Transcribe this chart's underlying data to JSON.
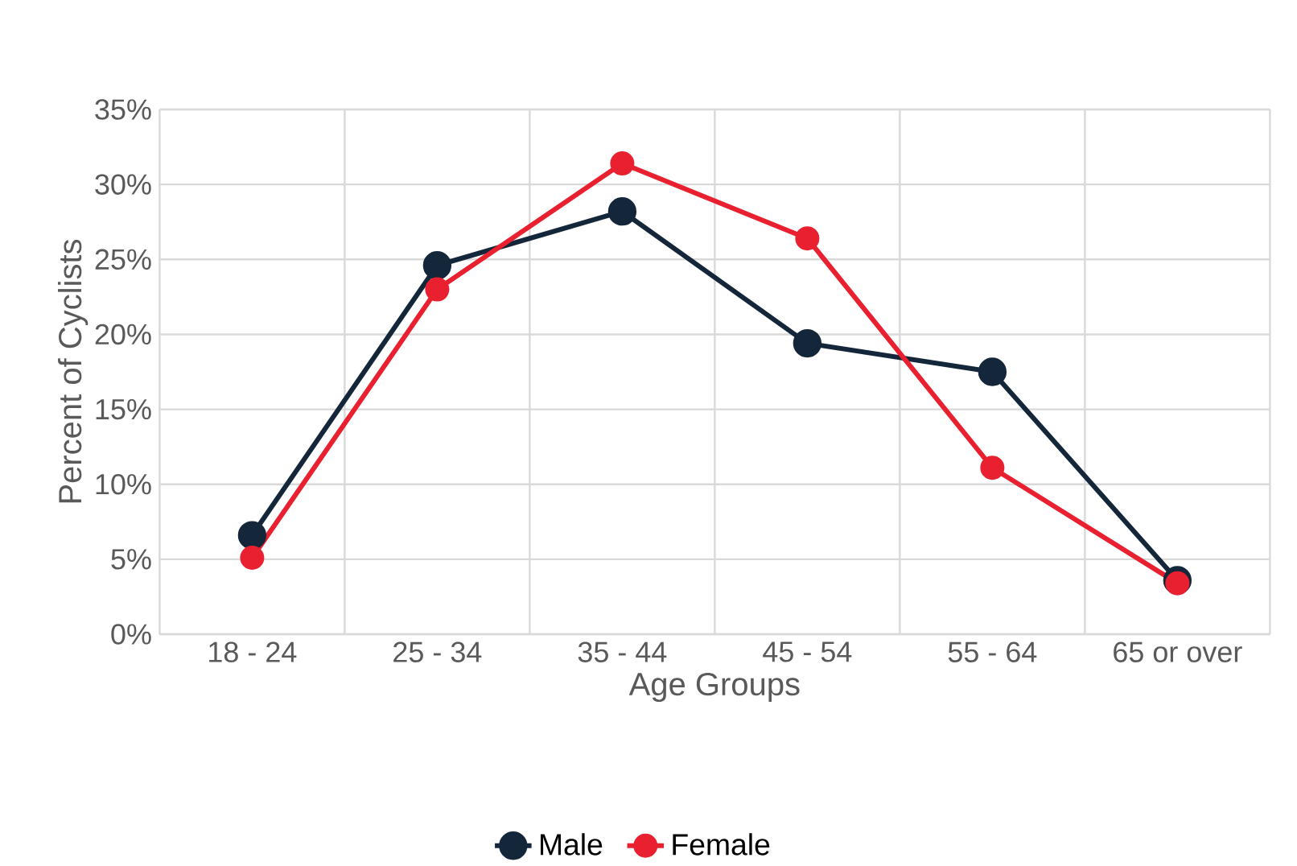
{
  "chart_data": {
    "type": "line",
    "xlabel": "Age Groups",
    "ylabel": "Percent of Cyclists",
    "categories": [
      "18 - 24",
      "25 - 34",
      "35 - 44",
      "45 - 54",
      "55 - 64",
      "65 or over"
    ],
    "series": [
      {
        "name": "Male",
        "color": "#14263a",
        "values": [
          6.6,
          24.6,
          28.2,
          19.4,
          17.5,
          3.6
        ]
      },
      {
        "name": "Female",
        "color": "#e8202f",
        "values": [
          5.1,
          23.0,
          31.4,
          26.4,
          11.1,
          3.4
        ]
      }
    ],
    "ylim": [
      0,
      35
    ],
    "yticks": [
      {
        "value": 0,
        "label": "0%"
      },
      {
        "value": 5,
        "label": "5%"
      },
      {
        "value": 10,
        "label": "10%"
      },
      {
        "value": 15,
        "label": "15%"
      },
      {
        "value": 20,
        "label": "20%"
      },
      {
        "value": 25,
        "label": "25%"
      },
      {
        "value": 30,
        "label": "30%"
      },
      {
        "value": 35,
        "label": "35%"
      }
    ],
    "grid": true,
    "legend": "bottom",
    "marker": "circle",
    "line_style": "solid"
  }
}
